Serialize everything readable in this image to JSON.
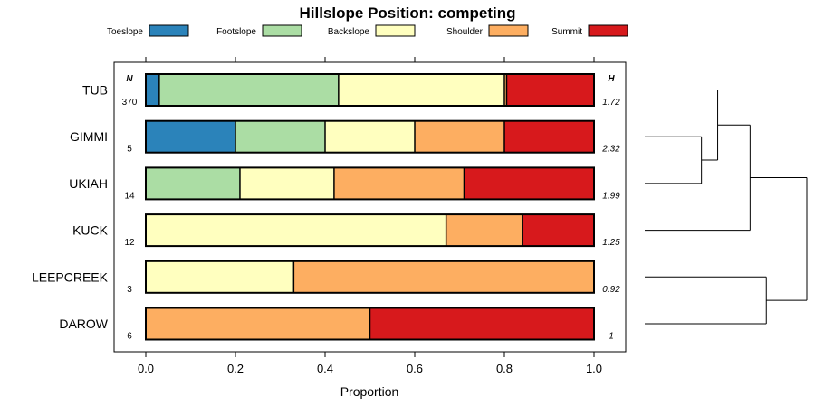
{
  "chart_data": {
    "type": "bar",
    "orientation": "horizontal",
    "stacked": true,
    "title": "Hillslope Position: competing",
    "xlabel": "Proportion",
    "xlim": [
      0,
      1
    ],
    "x_ticks": [
      "0.0",
      "0.2",
      "0.4",
      "0.6",
      "0.8",
      "1.0"
    ],
    "x_tick_values": [
      0,
      0.2,
      0.4,
      0.6,
      0.8,
      1.0
    ],
    "n_header": "N",
    "h_header": "H",
    "legend_position": "top",
    "legend": [
      {
        "name": "Toeslope",
        "color": "#2b83ba"
      },
      {
        "name": "Footslope",
        "color": "#abdda4"
      },
      {
        "name": "Backslope",
        "color": "#ffffbf"
      },
      {
        "name": "Shoulder",
        "color": "#fdae61"
      },
      {
        "name": "Summit",
        "color": "#d7191c"
      }
    ],
    "categories": [
      "TUB",
      "GIMMI",
      "UKIAH",
      "KUCK",
      "LEEPCREEK",
      "DAROW"
    ],
    "n": [
      "370",
      "5",
      "14",
      "12",
      "3",
      "6"
    ],
    "h": [
      "1.72",
      "2.32",
      "1.99",
      "1.25",
      "0.92",
      "1"
    ],
    "series": [
      {
        "name": "Toeslope",
        "values": [
          0.03,
          0.2,
          0.0,
          0.0,
          0.0,
          0.0
        ]
      },
      {
        "name": "Footslope",
        "values": [
          0.4,
          0.2,
          0.21,
          0.0,
          0.0,
          0.0
        ]
      },
      {
        "name": "Backslope",
        "values": [
          0.37,
          0.2,
          0.21,
          0.67,
          0.33,
          0.0
        ]
      },
      {
        "name": "Shoulder",
        "values": [
          0.005,
          0.2,
          0.29,
          0.17,
          0.67,
          0.5
        ]
      },
      {
        "name": "Summit",
        "values": [
          0.195,
          0.2,
          0.29,
          0.16,
          0.0,
          0.5
        ]
      }
    ],
    "dendrogram": {
      "merges": [
        {
          "a": "GIMMI",
          "b": "UKIAH",
          "height": 0.35
        },
        {
          "a": "TUB",
          "b": "GIMMI+UKIAH",
          "height": 0.45
        },
        {
          "a": "TUB+GIMMI+UKIAH",
          "b": "KUCK",
          "height": 0.65
        },
        {
          "a": "LEEPCREEK",
          "b": "DAROW",
          "height": 0.75
        },
        {
          "a": "ALL_UPPER",
          "b": "LEEPCREEK+DAROW",
          "height": 1.0
        }
      ]
    }
  }
}
